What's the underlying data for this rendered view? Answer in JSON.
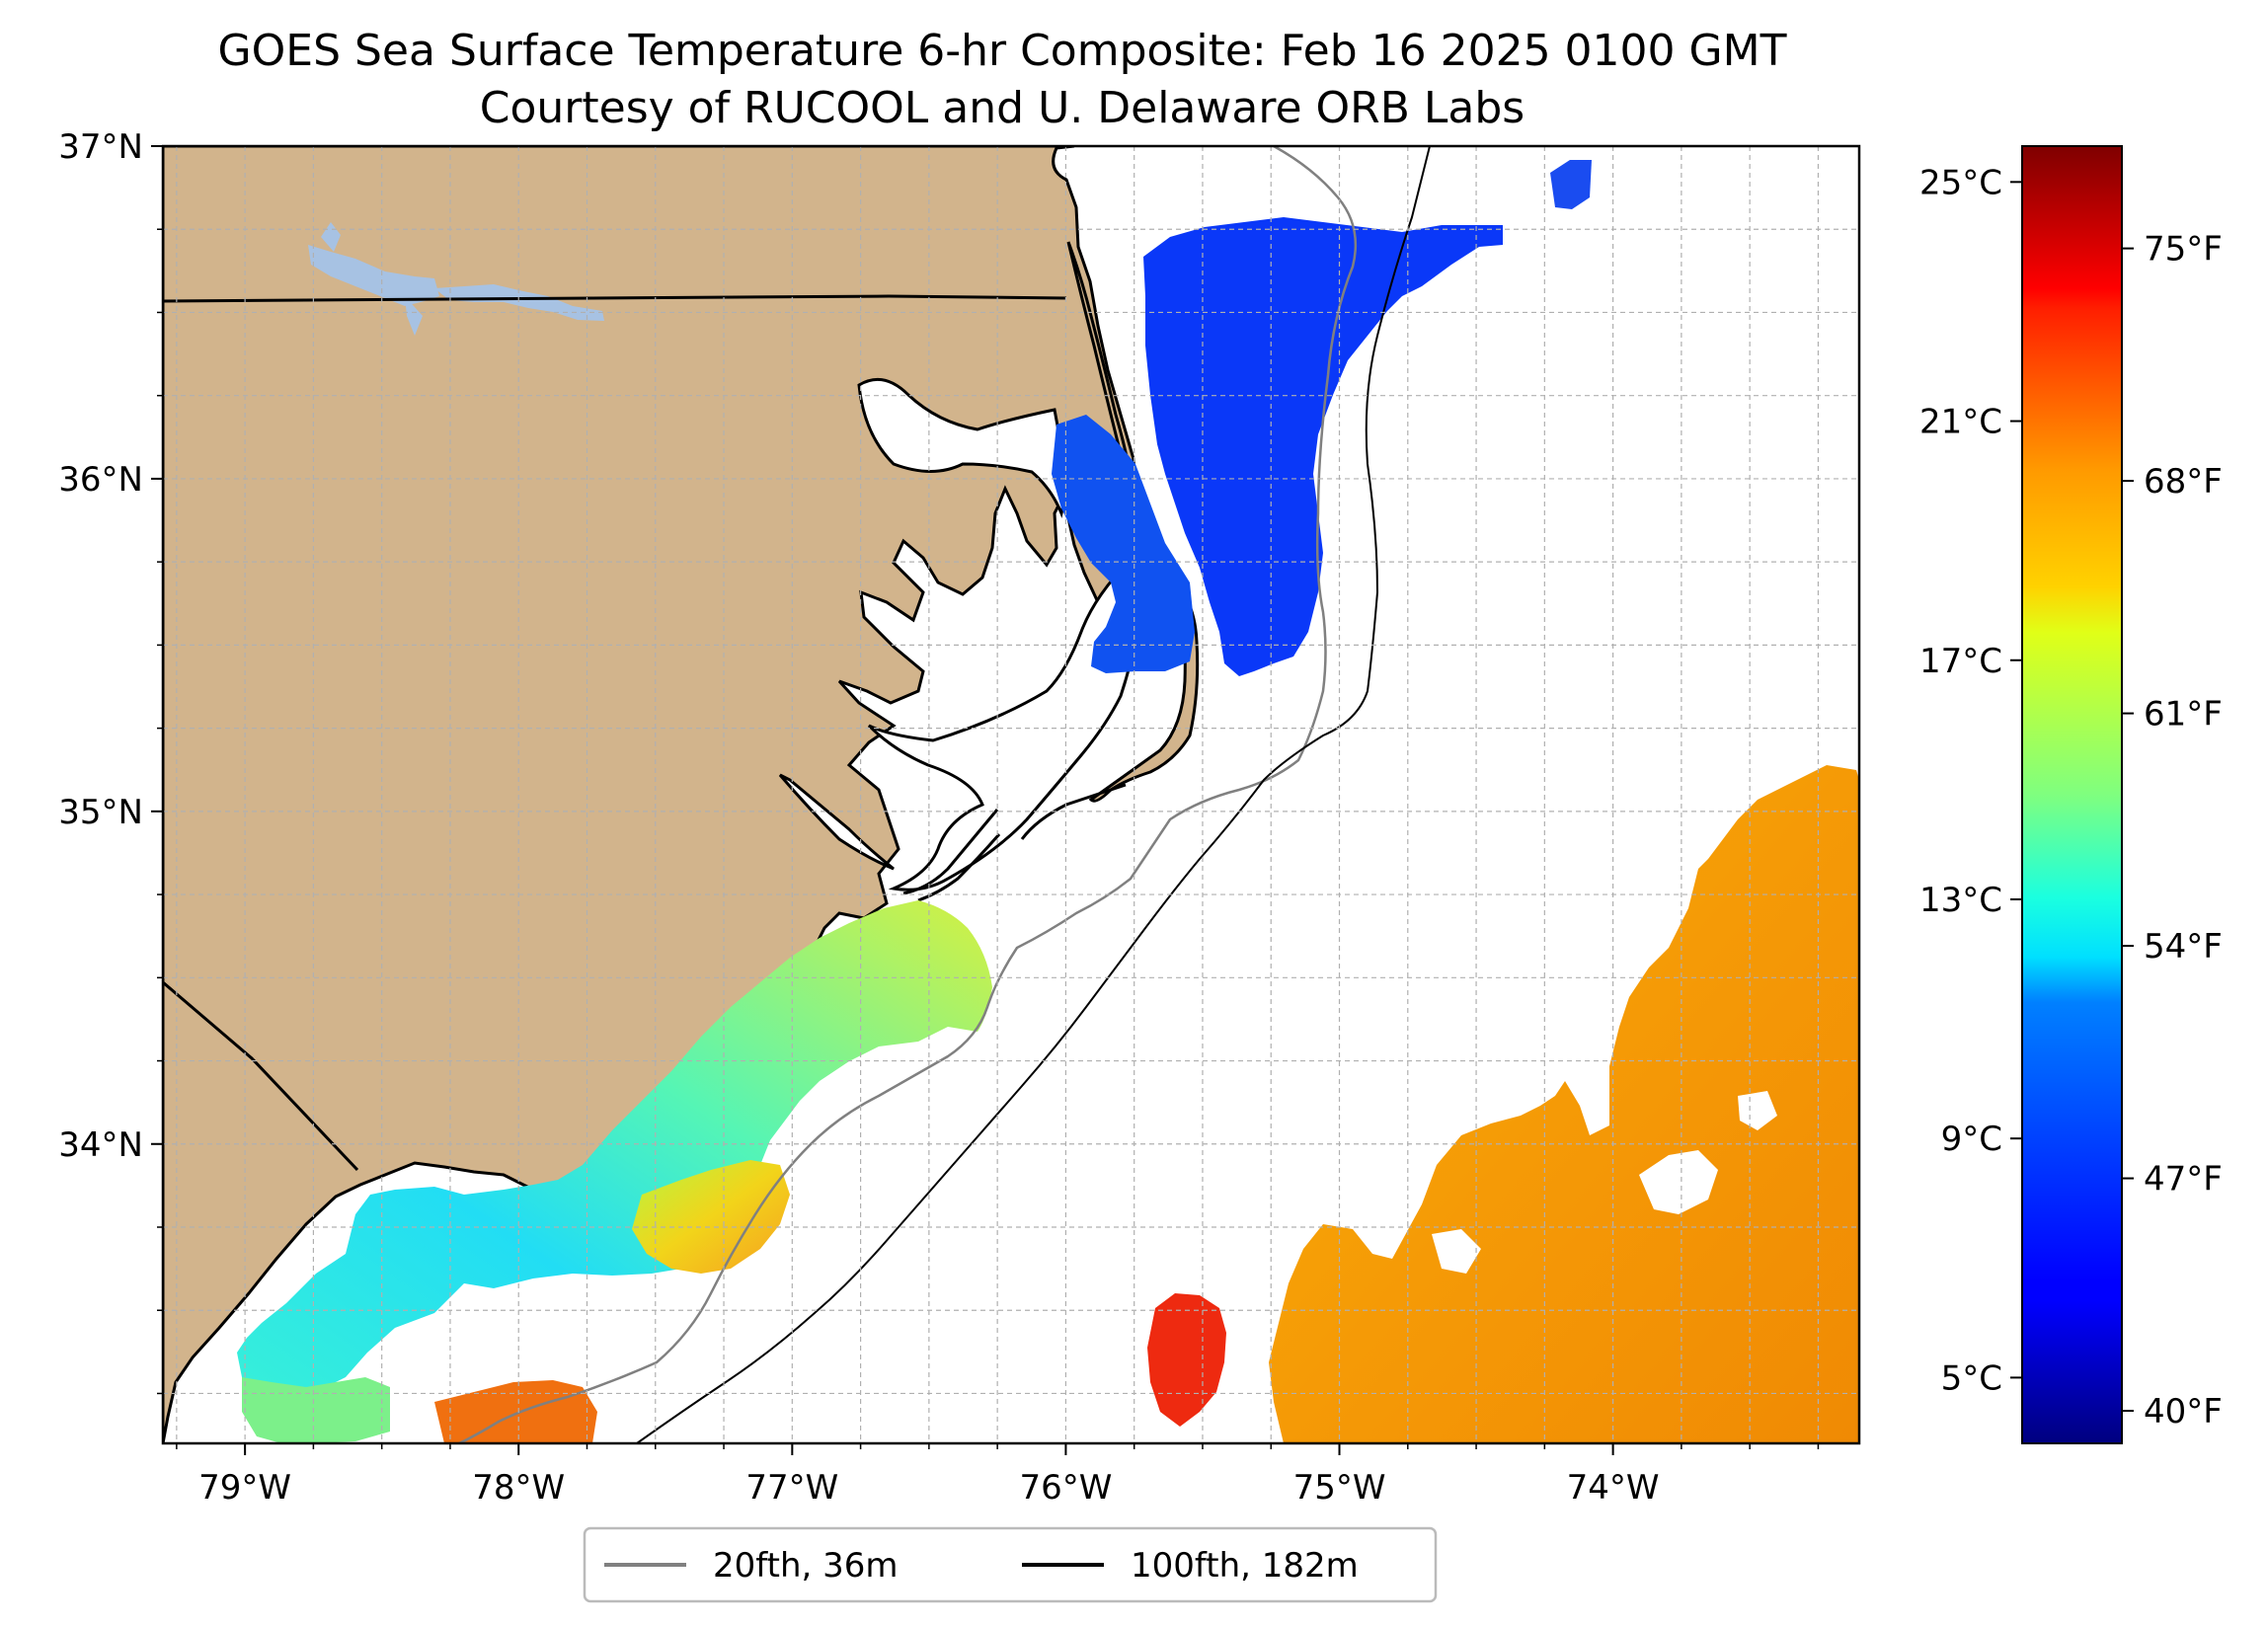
{
  "title": "GOES Sea Surface Temperature 6-hr Composite: Feb 16 2025 0100 GMT",
  "subtitle": "Courtesy of RUCOOL and U. Delaware ORB Labs",
  "colors": {
    "land": "#d2b48c",
    "lakes": "#a7c2e3",
    "coast": "#000000",
    "isobath_20fth": "#808080",
    "isobath_100fth": "#000000",
    "grid": "#b0b0b0"
  },
  "map": {
    "lon_range": [
      -79.3,
      -73.1
    ],
    "lat_range": [
      33.1,
      37.0
    ],
    "lon_ticks": [
      {
        "value": -79,
        "label": "79°W"
      },
      {
        "value": -78,
        "label": "78°W"
      },
      {
        "value": -77,
        "label": "77°W"
      },
      {
        "value": -76,
        "label": "76°W"
      },
      {
        "value": -75,
        "label": "75°W"
      },
      {
        "value": -74,
        "label": "74°W"
      }
    ],
    "lat_ticks": [
      {
        "value": 37,
        "label": "37°N"
      },
      {
        "value": 36,
        "label": "36°N"
      },
      {
        "value": 35,
        "label": "35°N"
      },
      {
        "value": 34,
        "label": "34°N"
      }
    ],
    "grid": true
  },
  "colorbar": {
    "colormap": "jet",
    "range_c": [
      3.9,
      25.6
    ],
    "celsius_ticks": [
      {
        "value": 25,
        "label": "25°C"
      },
      {
        "value": 21,
        "label": "21°C"
      },
      {
        "value": 17,
        "label": "17°C"
      },
      {
        "value": 13,
        "label": "13°C"
      },
      {
        "value": 9,
        "label": "9°C"
      },
      {
        "value": 5,
        "label": "5°C"
      }
    ],
    "fahrenheit_ticks": [
      {
        "value": 75,
        "label": "75°F"
      },
      {
        "value": 68,
        "label": "68°F"
      },
      {
        "value": 61,
        "label": "61°F"
      },
      {
        "value": 54,
        "label": "54°F"
      },
      {
        "value": 47,
        "label": "47°F"
      },
      {
        "value": 40,
        "label": "40°F"
      }
    ]
  },
  "legend": [
    {
      "label": "20fth, 36m",
      "color": "#808080"
    },
    {
      "label": "100fth, 182m",
      "color": "#000000"
    }
  ]
}
